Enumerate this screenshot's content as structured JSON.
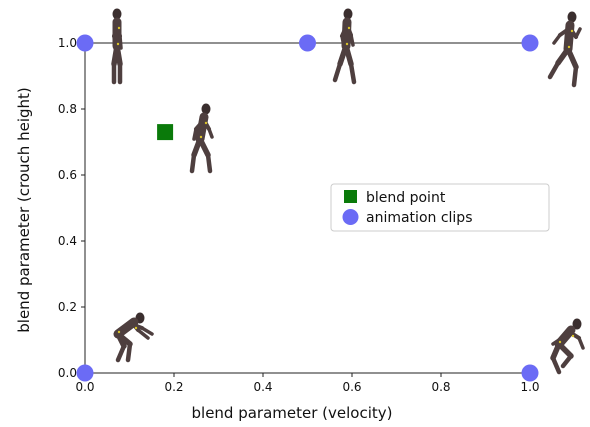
{
  "chart_data": {
    "type": "scatter",
    "title": "",
    "xlabel": "blend parameter (velocity)",
    "ylabel": "blend parameter (crouch height)",
    "xlim": [
      0.0,
      1.0
    ],
    "ylim": [
      0.0,
      1.0
    ],
    "xticks": [
      "0.0",
      "0.2",
      "0.4",
      "0.6",
      "0.8",
      "1.0"
    ],
    "yticks": [
      "0.0",
      "0.2",
      "0.4",
      "0.6",
      "0.8",
      "1.0"
    ],
    "grid": false,
    "legend_position": "center-right",
    "series": [
      {
        "name": "blend point",
        "marker": "square",
        "color": "#0a7a0a",
        "points": [
          {
            "x": 0.18,
            "y": 0.73
          }
        ]
      },
      {
        "name": "animation clips",
        "marker": "circle",
        "color": "#6b6bf5",
        "points": [
          {
            "x": 0.0,
            "y": 1.0
          },
          {
            "x": 0.5,
            "y": 1.0
          },
          {
            "x": 1.0,
            "y": 1.0
          },
          {
            "x": 0.0,
            "y": 0.0
          },
          {
            "x": 1.0,
            "y": 0.0
          }
        ]
      }
    ],
    "figure_icons": [
      "standing-figure-icon",
      "walking-figure-icon",
      "running-figure-icon",
      "crouching-figure-icon",
      "jumping-figure-icon",
      "blended-figure-icon"
    ]
  }
}
